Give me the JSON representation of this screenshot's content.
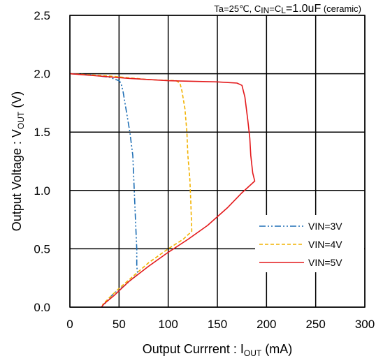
{
  "chart_data": {
    "type": "line",
    "condition": {
      "prefix": "Ta=25℃, C",
      "sub1": "IN",
      "mid": "=C",
      "sub2": "L",
      "value": "=1.0uF",
      "suffix": " (ceramic)"
    },
    "xlabel": {
      "main": "Output Currrent : I",
      "sub": "OUT",
      "unit": " (mA)"
    },
    "ylabel": {
      "main": "Output Voltage : V",
      "sub": "OUT",
      "unit": " (V)"
    },
    "xlim": [
      0,
      300
    ],
    "ylim": [
      0,
      2.5
    ],
    "x_ticks": [
      "0",
      "50",
      "100",
      "150",
      "200",
      "250",
      "300"
    ],
    "y_ticks": [
      "0.0",
      "0.5",
      "1.0",
      "1.5",
      "2.0",
      "2.5"
    ],
    "grid": true,
    "legend_position": "bottom-right",
    "series": [
      {
        "name": "VIN=3V",
        "color": "#1f6fb5",
        "dash": "dash-dot-dot",
        "points": [
          [
            0,
            2.0
          ],
          [
            20,
            1.99
          ],
          [
            40,
            1.97
          ],
          [
            50,
            1.94
          ],
          [
            52,
            1.92
          ],
          [
            54,
            1.85
          ],
          [
            57,
            1.7
          ],
          [
            61,
            1.5
          ],
          [
            64,
            1.3
          ],
          [
            65,
            1.1
          ],
          [
            66,
            0.9
          ],
          [
            67,
            0.7
          ],
          [
            68,
            0.5
          ],
          [
            68,
            0.35
          ],
          [
            69,
            0.28
          ],
          [
            63,
            0.24
          ],
          [
            55,
            0.18
          ],
          [
            45,
            0.12
          ],
          [
            38,
            0.06
          ],
          [
            35,
            0.02
          ]
        ]
      },
      {
        "name": "VIN=4V",
        "color": "#f2b200",
        "dash": "dashed",
        "points": [
          [
            0,
            2.0
          ],
          [
            40,
            1.98
          ],
          [
            80,
            1.95
          ],
          [
            108,
            1.94
          ],
          [
            112,
            1.92
          ],
          [
            114,
            1.85
          ],
          [
            117,
            1.7
          ],
          [
            119,
            1.5
          ],
          [
            120,
            1.3
          ],
          [
            122,
            1.1
          ],
          [
            123,
            0.9
          ],
          [
            124,
            0.65
          ],
          [
            115,
            0.58
          ],
          [
            100,
            0.5
          ],
          [
            80,
            0.38
          ],
          [
            65,
            0.27
          ],
          [
            50,
            0.16
          ],
          [
            40,
            0.08
          ],
          [
            33,
            0.02
          ]
        ]
      },
      {
        "name": "VIN=5V",
        "color": "#e3191b",
        "dash": "solid",
        "points": [
          [
            0,
            2.0
          ],
          [
            60,
            1.96
          ],
          [
            100,
            1.94
          ],
          [
            150,
            1.93
          ],
          [
            170,
            1.92
          ],
          [
            175,
            1.9
          ],
          [
            178,
            1.8
          ],
          [
            181,
            1.6
          ],
          [
            183,
            1.45
          ],
          [
            184,
            1.3
          ],
          [
            186,
            1.15
          ],
          [
            188,
            1.08
          ],
          [
            175,
            0.98
          ],
          [
            160,
            0.85
          ],
          [
            140,
            0.7
          ],
          [
            120,
            0.58
          ],
          [
            100,
            0.47
          ],
          [
            80,
            0.35
          ],
          [
            60,
            0.22
          ],
          [
            45,
            0.1
          ],
          [
            35,
            0.03
          ],
          [
            32,
            0.0
          ]
        ]
      }
    ]
  }
}
